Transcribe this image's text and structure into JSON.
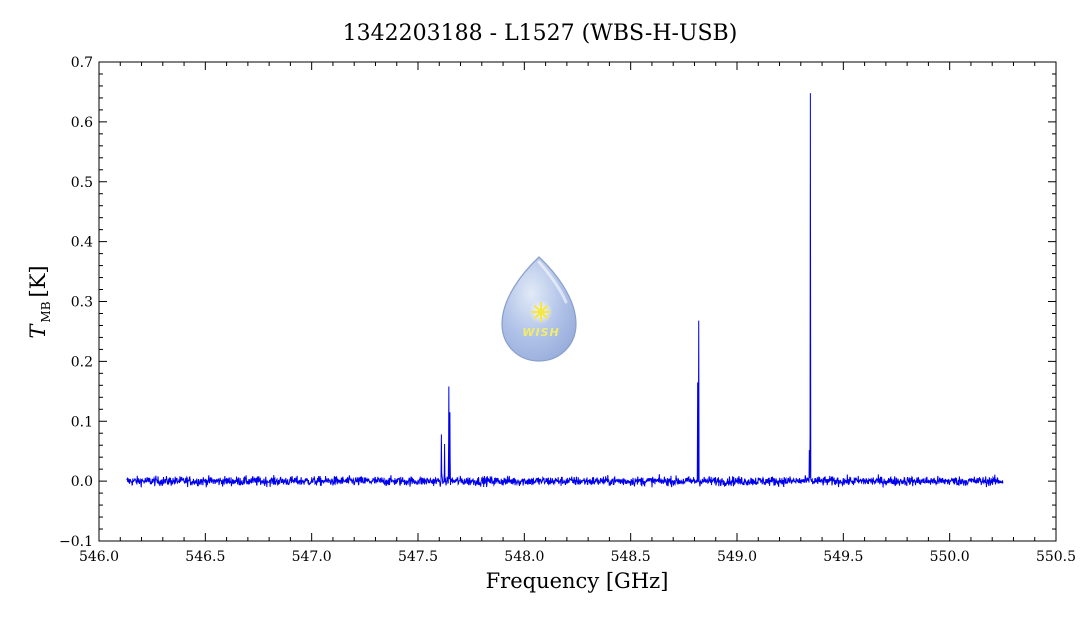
{
  "chart_data": {
    "type": "line",
    "title": "1342203188 - L1527 (WBS-H-USB)",
    "xlabel": "Frequency [GHz]",
    "ylabel_main": "T",
    "ylabel_sub": "MB",
    "ylabel_unit": "[K]",
    "xlim": [
      546.0,
      550.5
    ],
    "ylim": [
      -0.1,
      0.7
    ],
    "xticks": [
      "546.0",
      "546.5",
      "547.0",
      "547.5",
      "548.0",
      "548.5",
      "549.0",
      "549.5",
      "550.0",
      "550.5"
    ],
    "yticks": [
      "−0.1",
      "0.0",
      "0.1",
      "0.2",
      "0.3",
      "0.4",
      "0.5",
      "0.6",
      "0.7"
    ],
    "grid": false,
    "series": [
      {
        "color": "#0000ee",
        "x_range": [
          546.13,
          550.25
        ],
        "baseline": 0.0,
        "noise_rms": 0.004,
        "peaks": [
          {
            "x": 547.61,
            "y": 0.078
          },
          {
            "x": 547.625,
            "y": 0.062
          },
          {
            "x": 547.645,
            "y": 0.158
          },
          {
            "x": 547.65,
            "y": 0.115
          },
          {
            "x": 548.815,
            "y": 0.165
          },
          {
            "x": 548.82,
            "y": 0.268
          },
          {
            "x": 549.34,
            "y": 0.05
          },
          {
            "x": 549.345,
            "y": 0.648
          }
        ]
      }
    ],
    "logo_text": "WISH"
  }
}
